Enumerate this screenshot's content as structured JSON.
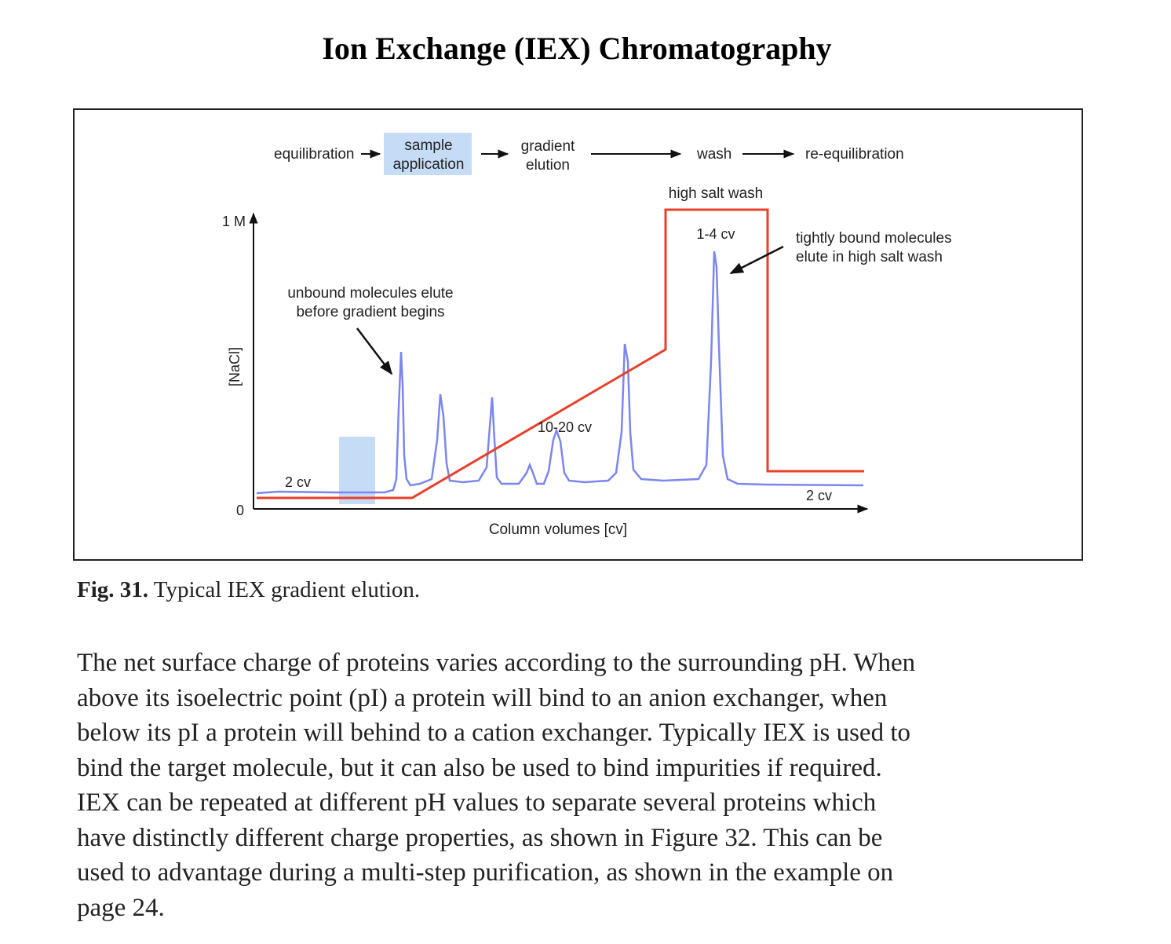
{
  "title": "Ion Exchange (IEX) Chromatography",
  "figure": {
    "steps": [
      "equilibration",
      "sample",
      "application",
      "gradient",
      "elution",
      "wash",
      "re-equilibration"
    ],
    "y_axis_label": "[NaCl]",
    "y_tick_top": "1 M",
    "y_tick_zero": "0",
    "x_axis_label": "Column volumes [cv]",
    "annotations": {
      "cv_start": "2 cv",
      "cv_gradient": "10-20 cv",
      "cv_high_salt": "1-4 cv",
      "cv_end": "2 cv",
      "high_salt_wash": "high salt wash",
      "unbound_line1": "unbound molecules elute",
      "unbound_line2": "before gradient begins",
      "tight_line1": "tightly bound molecules",
      "tight_line2": "elute in high salt wash"
    },
    "colors": {
      "salt_line": "#e8402a",
      "absorbance_line": "#7b86f0",
      "sample_highlight": "#c6dcf6"
    }
  },
  "caption": {
    "label": "Fig. 31.",
    "text": "Typical IEX gradient elution."
  },
  "body_lines": [
    "The net surface charge of proteins varies according to the surrounding pH. When",
    "above its isoelectric point (pI) a protein will bind to an anion exchanger, when",
    "below its pI a protein will behind to a cation exchanger. Typically IEX is used to",
    "bind the target molecule, but it can also be used to bind impurities if required.",
    "IEX can be repeated at different pH values to separate several proteins which",
    "have distinctly different charge properties, as shown in Figure 32. This can be",
    "used to advantage during a multi-step purification, as shown in the example on",
    "page 24."
  ]
}
